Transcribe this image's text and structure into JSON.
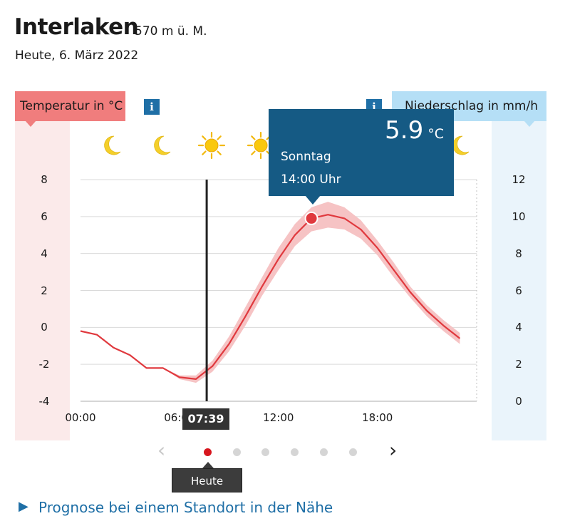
{
  "header": {
    "title": "Interlaken",
    "elevation": "570 m ü. M.",
    "date": "Heute, 6. März 2022"
  },
  "legend": {
    "temp_label": "Temperatur in °C",
    "rain_label": "Niederschlag in mm/h",
    "info_glyph": "i"
  },
  "colors": {
    "temp": "#e0393e",
    "temp_band": "#f6c3c4",
    "tooltip": "#155a84",
    "now_line": "#222222"
  },
  "weather_icons": [
    "moon-icon",
    "moon-icon",
    "sun-icon",
    "sun-icon",
    "sun-icon",
    "sun-icon",
    "sun-icon",
    "moon-icon"
  ],
  "tooltip": {
    "value": "5.9",
    "unit": "°C",
    "day": "Sonntag",
    "time": "14:00 Uhr"
  },
  "now_marker": {
    "label": "07:39",
    "hour": 7.65
  },
  "pager": {
    "today_label": "Heute",
    "dot_count": 6,
    "active_index": 0,
    "prev_glyph": "‹",
    "next_glyph": "›"
  },
  "footer_link": {
    "text": "Prognose bei einem Standort in der Nähe"
  },
  "chart_data": {
    "type": "line",
    "x_unit": "hour",
    "x_ticks": [
      "00:00",
      "06:00",
      "12:00",
      "18:00"
    ],
    "x_tick_hours": [
      0,
      6,
      12,
      18
    ],
    "xlim": [
      0,
      24
    ],
    "y_left": {
      "label": "Temperatur in °C",
      "ticks": [
        8,
        6,
        4,
        2,
        0,
        -2,
        -4
      ],
      "lim": [
        -4,
        8
      ]
    },
    "y_right": {
      "label": "Niederschlag in mm/h",
      "ticks": [
        12,
        10,
        8,
        6,
        4,
        2,
        0
      ],
      "lim": [
        0,
        12
      ]
    },
    "grid": true,
    "series": [
      {
        "x": [
          0,
          1,
          2,
          3,
          4,
          5,
          6,
          7,
          8,
          9,
          10,
          11,
          12,
          13,
          14,
          15,
          16,
          17,
          18,
          19,
          20,
          21,
          22,
          23
        ],
        "y": [
          -0.2,
          -0.4,
          -1.1,
          -1.5,
          -2.2,
          -2.2,
          -2.7,
          -2.8,
          -2.1,
          -0.9,
          0.6,
          2.2,
          3.7,
          5.0,
          5.9,
          6.1,
          5.9,
          5.3,
          4.3,
          3.1,
          1.9,
          0.9,
          0.1,
          -0.6
        ],
        "lower": [
          -0.2,
          -0.4,
          -1.1,
          -1.5,
          -2.2,
          -2.2,
          -2.8,
          -3.0,
          -2.4,
          -1.3,
          0.1,
          1.7,
          3.1,
          4.4,
          5.2,
          5.4,
          5.3,
          4.8,
          3.9,
          2.7,
          1.6,
          0.6,
          -0.2,
          -0.9
        ],
        "upper": [
          -0.2,
          -0.4,
          -1.1,
          -1.5,
          -2.2,
          -2.2,
          -2.6,
          -2.6,
          -1.8,
          -0.5,
          1.1,
          2.7,
          4.3,
          5.6,
          6.5,
          6.8,
          6.5,
          5.8,
          4.7,
          3.5,
          2.2,
          1.2,
          0.4,
          -0.3
        ]
      }
    ],
    "highlight": {
      "x": 14,
      "y": 5.9
    }
  }
}
